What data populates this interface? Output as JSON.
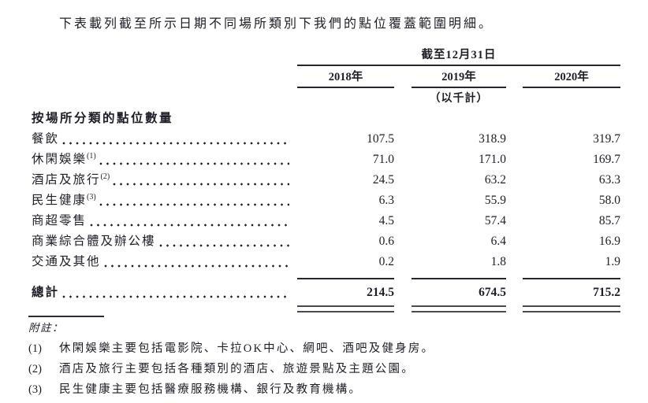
{
  "intro": "下表載列截至所示日期不同場所類別下我們的點位覆蓋範圍明細。",
  "colors": {
    "text": "#1e1e28",
    "rule": "#26262e",
    "double_rule": "#4a4a54"
  },
  "chart_data": {
    "type": "table",
    "title": "按場所分類的點位數量",
    "date_header": "截至12月31日",
    "unit_note": "（以千計）",
    "columns": [
      "2018年",
      "2019年",
      "2020年"
    ],
    "rows": [
      {
        "label": "餐飲",
        "sup": "",
        "values": [
          "107.5",
          "318.9",
          "319.7"
        ]
      },
      {
        "label": "休閑娛樂",
        "sup": "(1)",
        "values": [
          "71.0",
          "171.0",
          "169.7"
        ]
      },
      {
        "label": "酒店及旅行",
        "sup": "(2)",
        "values": [
          "24.5",
          "63.2",
          "63.3"
        ]
      },
      {
        "label": "民生健康",
        "sup": "(3)",
        "values": [
          "6.3",
          "55.9",
          "58.0"
        ]
      },
      {
        "label": "商超零售",
        "sup": "",
        "values": [
          "4.5",
          "57.4",
          "85.7"
        ]
      },
      {
        "label": "商業綜合體及辦公樓",
        "sup": "",
        "values": [
          "0.6",
          "6.4",
          "16.9"
        ]
      },
      {
        "label": "交通及其他",
        "sup": "",
        "values": [
          "0.2",
          "1.8",
          "1.9"
        ]
      }
    ],
    "total": {
      "label": "總計",
      "values": [
        "214.5",
        "674.5",
        "715.2"
      ]
    }
  },
  "table": {
    "date_header": "截至12月31日",
    "unit_note": "（以千計）",
    "columns": [
      "2018年",
      "2019年",
      "2020年"
    ],
    "section_header": "按場所分類的點位數量",
    "total_label": "總計"
  },
  "notes": {
    "title": "附註：",
    "items": [
      {
        "num": "(1)",
        "text": "休閑娛樂主要包括電影院、卡拉OK中心、網吧、酒吧及健身房。"
      },
      {
        "num": "(2)",
        "text": "酒店及旅行主要包括各種類別的酒店、旅遊景點及主題公園。"
      },
      {
        "num": "(3)",
        "text": "民生健康主要包括醫療服務機構、銀行及教育機構。"
      }
    ]
  }
}
